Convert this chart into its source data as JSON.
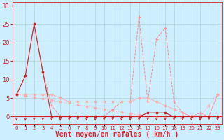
{
  "background_color": "#cceeff",
  "grid_color": "#aacccc",
  "xlabel": "Vent moyen/en rafales ( km/h )",
  "xlabel_color": "#dd2222",
  "xlabel_fontsize": 7,
  "ytick_vals": [
    0,
    5,
    10,
    15,
    20,
    25,
    30
  ],
  "ylim": [
    -2,
    31
  ],
  "xlim": [
    -0.5,
    23.5
  ],
  "x": [
    0,
    1,
    2,
    3,
    4,
    5,
    6,
    7,
    8,
    9,
    10,
    11,
    12,
    13,
    14,
    15,
    16,
    17,
    18,
    19,
    20,
    21,
    22,
    23
  ],
  "y_moyen": [
    6,
    11,
    25,
    12,
    0,
    0,
    0,
    0,
    0,
    0,
    0,
    0,
    0,
    0,
    0,
    1,
    1,
    1,
    0,
    0,
    0,
    0,
    0,
    0
  ],
  "y_rafales": [
    6,
    11,
    25,
    12,
    3,
    0,
    0,
    0,
    0,
    0,
    0,
    2,
    4,
    4,
    27,
    4,
    21,
    24,
    4,
    1,
    0,
    1,
    0,
    6
  ],
  "y_tend": [
    6,
    5.6,
    5.2,
    4.8,
    4.4,
    4.0,
    3.6,
    3.2,
    2.8,
    2.4,
    2.0,
    1.6,
    1.2,
    0.8,
    0.4,
    0,
    0,
    0,
    0,
    0,
    0,
    0,
    3,
    6
  ],
  "y_flat": [
    6,
    6,
    6,
    6,
    6,
    5,
    4,
    4,
    4,
    4,
    4,
    4,
    4,
    4,
    5,
    5,
    4,
    3,
    2,
    1,
    0,
    0,
    0,
    6
  ],
  "color_moyen": "#cc2222",
  "color_rafales": "#ff8888",
  "color_tend": "#ffaaaa",
  "color_flat": "#ffbbbb",
  "arrow_color": "#cc2222",
  "marker_color": "#cc2222"
}
